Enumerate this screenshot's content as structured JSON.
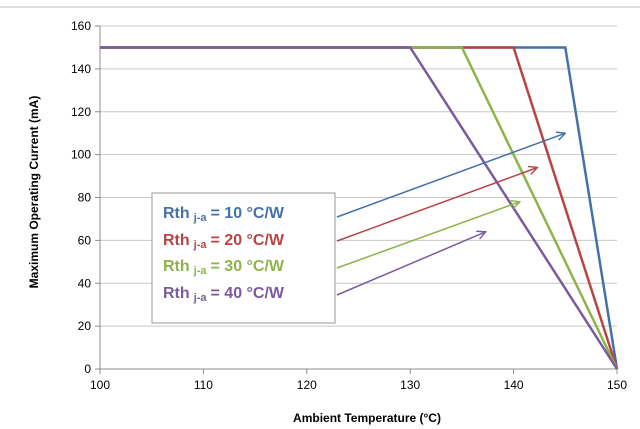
{
  "chart_data": {
    "type": "line",
    "xlabel": "Ambient Temperature (°C)",
    "ylabel": "Maximum Operating Current (mA)",
    "xlim": [
      100,
      150
    ],
    "ylim": [
      0,
      160
    ],
    "x_ticks": [
      "100",
      "110",
      "120",
      "130",
      "140",
      "150"
    ],
    "y_ticks": [
      "0",
      "20",
      "40",
      "60",
      "80",
      "100",
      "120",
      "140",
      "160"
    ],
    "grid": "horizontal",
    "legend_placement": "center-left boxed annotation with arrows",
    "series": [
      {
        "name": "Rth j-a = 10 °C/W",
        "label_main": "Rth",
        "label_sub": "j-a",
        "label_value": "= 10 °C/W",
        "color": "#4472A8",
        "x": [
          100,
          145,
          150
        ],
        "y": [
          150,
          150,
          0
        ],
        "arrow_to": [
          145,
          110
        ]
      },
      {
        "name": "Rth j-a = 20 °C/W",
        "label_main": "Rth",
        "label_sub": "j-a",
        "label_value": "= 20 °C/W",
        "color": "#B84545",
        "x": [
          100,
          140,
          150
        ],
        "y": [
          150,
          150,
          0
        ],
        "arrow_to": [
          142.3,
          94
        ]
      },
      {
        "name": "Rth j-a = 30 °C/W",
        "label_main": "Rth",
        "label_sub": "j-a",
        "label_value": "= 30 °C/W",
        "color": "#8DB44A",
        "x": [
          100,
          135,
          150
        ],
        "y": [
          150,
          150,
          0
        ],
        "arrow_to": [
          140.6,
          78
        ]
      },
      {
        "name": "Rth j-a = 40 °C/W",
        "label_main": "Rth",
        "label_sub": "j-a",
        "label_value": "= 40 °C/W",
        "color": "#7A5A9E",
        "x": [
          100,
          130,
          150
        ],
        "y": [
          150,
          150,
          0
        ],
        "arrow_to": [
          137.3,
          64
        ]
      }
    ]
  }
}
